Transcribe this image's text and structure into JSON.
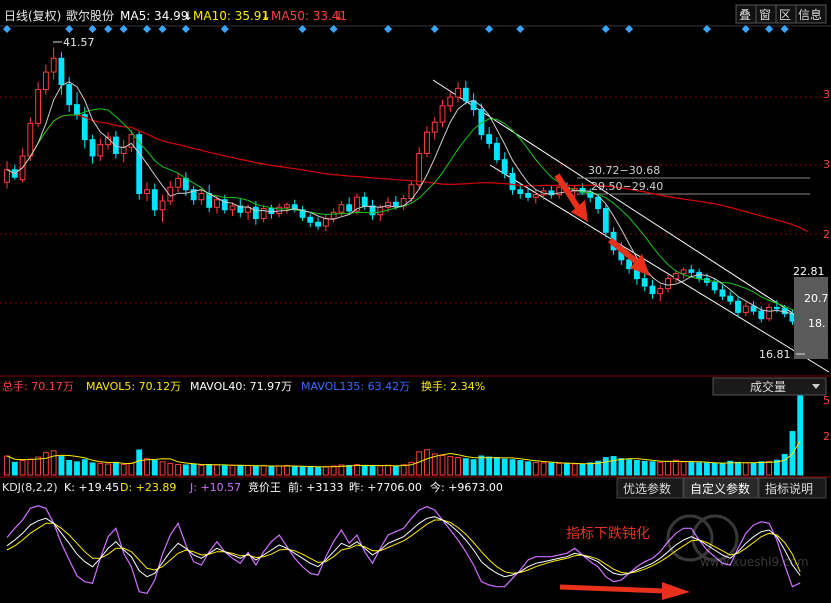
{
  "header": {
    "name_label": "日线(复权)",
    "stock_name": "歌尔股份",
    "ma5": "MA5: 34.99",
    "ma10": "MA10: 35.91",
    "ma50": "MA50: 33.41",
    "down_arrow": "↓",
    "up_arrow": "↑",
    "buttons": [
      "叠",
      "窗",
      "区",
      "信息"
    ]
  },
  "price_annotations": {
    "high": "41.57",
    "gap1": "30.72−30.68",
    "gap2": "29.50−29.40",
    "ma_val": "22.81",
    "mid_val": "20.7",
    "low_mid": "18.",
    "low": "16.81",
    "right_axis_digit": "3",
    "right_axis_digit2": "2"
  },
  "volume_panel": {
    "total": "总手: 70.17万",
    "mavol5": "MAVOL5: 70.12万",
    "mavol40": "MAVOL40: 71.97万",
    "mavol135": "MAVOL135: 63.42万",
    "turnover": "换手: 2.34%",
    "select_label": "成交量",
    "axis_digit": "5",
    "axis_digit2": "2"
  },
  "kdj_panel": {
    "label": "KDJ(8,2,2)",
    "k": "K: +19.45",
    "d": "D: +23.89",
    "j": "J: +10.57",
    "jingjia": "竞价王",
    "qian": "前: +3133",
    "zuo": "昨: +7706.00",
    "jin": "今: +9673.00",
    "tabs": [
      "优选参数",
      "自定义参数",
      "指标说明"
    ],
    "annotation": "指标下跌钝化",
    "watermark_url": "www.xueshl9.com"
  },
  "colors": {
    "background": "#000000",
    "up": "#ff3d3d",
    "down": "#00e5ff",
    "ma5": "#ffffff",
    "ma10": "#ffea00",
    "ma50": "#d80000",
    "channel": "#ffffff",
    "grid": "#8b0000",
    "arrow": "#e8301b",
    "diamond": "#3aa6ff"
  },
  "chart_data": {
    "type": "candlestick",
    "symbol": "歌尔股份",
    "timeframe": "daily (adjusted)",
    "price_range": [
      16.81,
      41.57
    ],
    "candles": [
      {
        "o": 30.8,
        "h": 32.5,
        "l": 30.3,
        "c": 31.8
      },
      {
        "o": 31.8,
        "h": 32.2,
        "l": 31.0,
        "c": 31.2
      },
      {
        "o": 31.0,
        "h": 33.5,
        "l": 30.8,
        "c": 32.9
      },
      {
        "o": 32.9,
        "h": 36.0,
        "l": 32.5,
        "c": 35.5
      },
      {
        "o": 35.5,
        "h": 38.8,
        "l": 35.2,
        "c": 38.2
      },
      {
        "o": 38.2,
        "h": 40.2,
        "l": 37.8,
        "c": 39.6
      },
      {
        "o": 39.6,
        "h": 41.57,
        "l": 39.0,
        "c": 40.7
      },
      {
        "o": 40.7,
        "h": 41.2,
        "l": 37.8,
        "c": 38.6
      },
      {
        "o": 38.6,
        "h": 39.2,
        "l": 36.4,
        "c": 37.0
      },
      {
        "o": 37.0,
        "h": 38.0,
        "l": 35.8,
        "c": 36.2
      },
      {
        "o": 36.2,
        "h": 36.8,
        "l": 33.5,
        "c": 34.2
      },
      {
        "o": 34.2,
        "h": 34.6,
        "l": 32.3,
        "c": 32.9
      },
      {
        "o": 32.9,
        "h": 34.3,
        "l": 32.5,
        "c": 33.8
      },
      {
        "o": 33.8,
        "h": 34.8,
        "l": 33.4,
        "c": 34.4
      },
      {
        "o": 34.4,
        "h": 34.9,
        "l": 32.7,
        "c": 33.1
      },
      {
        "o": 33.1,
        "h": 34.2,
        "l": 32.4,
        "c": 33.6
      },
      {
        "o": 33.6,
        "h": 35.0,
        "l": 33.2,
        "c": 34.6
      },
      {
        "o": 34.6,
        "h": 34.9,
        "l": 29.4,
        "c": 29.9
      },
      {
        "o": 29.9,
        "h": 30.8,
        "l": 29.3,
        "c": 30.2
      },
      {
        "o": 30.2,
        "h": 30.7,
        "l": 28.1,
        "c": 28.6
      },
      {
        "o": 28.6,
        "h": 29.8,
        "l": 27.6,
        "c": 29.3
      },
      {
        "o": 29.3,
        "h": 30.9,
        "l": 29.0,
        "c": 30.4
      },
      {
        "o": 30.4,
        "h": 31.5,
        "l": 30.0,
        "c": 31.1
      },
      {
        "o": 31.1,
        "h": 31.6,
        "l": 29.7,
        "c": 30.2
      },
      {
        "o": 30.2,
        "h": 30.5,
        "l": 29.0,
        "c": 29.4
      },
      {
        "o": 29.4,
        "h": 30.2,
        "l": 29.0,
        "c": 29.9
      },
      {
        "o": 29.9,
        "h": 30.6,
        "l": 28.4,
        "c": 28.8
      },
      {
        "o": 28.8,
        "h": 29.7,
        "l": 28.3,
        "c": 29.4
      },
      {
        "o": 29.4,
        "h": 29.8,
        "l": 28.3,
        "c": 28.6
      },
      {
        "o": 28.6,
        "h": 29.2,
        "l": 28.1,
        "c": 28.9
      },
      {
        "o": 28.9,
        "h": 29.5,
        "l": 28.0,
        "c": 28.4
      },
      {
        "o": 28.4,
        "h": 29.0,
        "l": 27.8,
        "c": 28.8
      },
      {
        "o": 28.8,
        "h": 29.3,
        "l": 27.4,
        "c": 27.9
      },
      {
        "o": 27.9,
        "h": 29.0,
        "l": 27.6,
        "c": 28.7
      },
      {
        "o": 28.7,
        "h": 29.0,
        "l": 27.9,
        "c": 28.3
      },
      {
        "o": 28.3,
        "h": 29.1,
        "l": 28.0,
        "c": 28.8
      },
      {
        "o": 28.8,
        "h": 29.2,
        "l": 28.3,
        "c": 29.0
      },
      {
        "o": 29.0,
        "h": 29.4,
        "l": 28.4,
        "c": 28.6
      },
      {
        "o": 28.6,
        "h": 28.9,
        "l": 27.7,
        "c": 28.0
      },
      {
        "o": 28.0,
        "h": 28.3,
        "l": 27.2,
        "c": 27.6
      },
      {
        "o": 27.6,
        "h": 28.0,
        "l": 27.0,
        "c": 27.3
      },
      {
        "o": 27.3,
        "h": 28.2,
        "l": 26.9,
        "c": 27.9
      },
      {
        "o": 27.9,
        "h": 28.7,
        "l": 27.6,
        "c": 28.4
      },
      {
        "o": 28.4,
        "h": 29.3,
        "l": 28.1,
        "c": 29.0
      },
      {
        "o": 29.0,
        "h": 29.6,
        "l": 28.2,
        "c": 28.5
      },
      {
        "o": 28.5,
        "h": 29.9,
        "l": 28.2,
        "c": 29.6
      },
      {
        "o": 29.6,
        "h": 30.0,
        "l": 28.6,
        "c": 28.9
      },
      {
        "o": 28.9,
        "h": 29.4,
        "l": 27.8,
        "c": 28.2
      },
      {
        "o": 28.2,
        "h": 29.0,
        "l": 27.7,
        "c": 28.8
      },
      {
        "o": 28.8,
        "h": 29.6,
        "l": 28.4,
        "c": 29.2
      },
      {
        "o": 29.2,
        "h": 29.7,
        "l": 28.6,
        "c": 28.9
      },
      {
        "o": 28.9,
        "h": 29.8,
        "l": 28.6,
        "c": 29.5
      },
      {
        "o": 29.5,
        "h": 30.9,
        "l": 29.2,
        "c": 30.6
      },
      {
        "o": 30.6,
        "h": 33.6,
        "l": 30.3,
        "c": 33.1
      },
      {
        "o": 33.1,
        "h": 35.3,
        "l": 32.8,
        "c": 34.8
      },
      {
        "o": 34.8,
        "h": 36.0,
        "l": 34.2,
        "c": 35.6
      },
      {
        "o": 35.6,
        "h": 37.4,
        "l": 35.2,
        "c": 36.9
      },
      {
        "o": 36.9,
        "h": 38.0,
        "l": 36.4,
        "c": 37.6
      },
      {
        "o": 37.6,
        "h": 38.8,
        "l": 37.2,
        "c": 38.3
      },
      {
        "o": 38.3,
        "h": 38.9,
        "l": 37.0,
        "c": 37.3
      },
      {
        "o": 37.3,
        "h": 37.9,
        "l": 36.1,
        "c": 36.6
      },
      {
        "o": 36.6,
        "h": 37.1,
        "l": 34.2,
        "c": 34.6
      },
      {
        "o": 34.6,
        "h": 35.2,
        "l": 33.5,
        "c": 33.9
      },
      {
        "o": 33.9,
        "h": 34.4,
        "l": 32.3,
        "c": 32.6
      },
      {
        "o": 32.6,
        "h": 33.2,
        "l": 31.1,
        "c": 31.5
      },
      {
        "o": 31.5,
        "h": 32.0,
        "l": 29.8,
        "c": 30.2
      },
      {
        "o": 30.2,
        "h": 30.7,
        "l": 29.5,
        "c": 29.9
      },
      {
        "o": 29.9,
        "h": 30.4,
        "l": 29.3,
        "c": 29.6
      },
      {
        "o": 29.6,
        "h": 30.2,
        "l": 29.1,
        "c": 29.8
      },
      {
        "o": 29.8,
        "h": 30.4,
        "l": 29.4,
        "c": 30.1
      },
      {
        "o": 30.1,
        "h": 30.5,
        "l": 29.5,
        "c": 29.8
      },
      {
        "o": 29.8,
        "h": 30.7,
        "l": 29.5,
        "c": 30.4
      },
      {
        "o": 30.4,
        "h": 30.8,
        "l": 29.9,
        "c": 30.1
      },
      {
        "o": 30.1,
        "h": 30.6,
        "l": 29.6,
        "c": 30.3
      },
      {
        "o": 30.3,
        "h": 30.72,
        "l": 29.8,
        "c": 30.0
      },
      {
        "o": 30.0,
        "h": 30.3,
        "l": 29.2,
        "c": 29.6
      },
      {
        "o": 29.6,
        "h": 29.9,
        "l": 28.3,
        "c": 28.7
      },
      {
        "o": 28.7,
        "h": 29.0,
        "l": 26.4,
        "c": 26.8
      },
      {
        "o": 26.8,
        "h": 27.2,
        "l": 25.0,
        "c": 25.4
      },
      {
        "o": 25.4,
        "h": 26.0,
        "l": 24.2,
        "c": 24.6
      },
      {
        "o": 24.6,
        "h": 25.0,
        "l": 23.5,
        "c": 23.9
      },
      {
        "o": 23.9,
        "h": 24.4,
        "l": 22.6,
        "c": 23.1
      },
      {
        "o": 23.1,
        "h": 23.6,
        "l": 22.1,
        "c": 22.5
      },
      {
        "o": 22.5,
        "h": 23.0,
        "l": 21.5,
        "c": 21.9
      },
      {
        "o": 21.9,
        "h": 22.6,
        "l": 21.3,
        "c": 22.3
      },
      {
        "o": 22.3,
        "h": 23.4,
        "l": 22.0,
        "c": 23.1
      },
      {
        "o": 23.1,
        "h": 23.8,
        "l": 22.8,
        "c": 23.5
      },
      {
        "o": 23.5,
        "h": 24.0,
        "l": 23.1,
        "c": 23.8
      },
      {
        "o": 23.8,
        "h": 24.2,
        "l": 23.3,
        "c": 23.6
      },
      {
        "o": 23.6,
        "h": 23.9,
        "l": 22.8,
        "c": 23.1
      },
      {
        "o": 23.1,
        "h": 23.5,
        "l": 22.5,
        "c": 22.8
      },
      {
        "o": 22.8,
        "h": 23.1,
        "l": 21.9,
        "c": 22.2
      },
      {
        "o": 22.2,
        "h": 22.6,
        "l": 21.4,
        "c": 21.7
      },
      {
        "o": 21.7,
        "h": 22.1,
        "l": 21.0,
        "c": 21.3
      },
      {
        "o": 21.3,
        "h": 21.6,
        "l": 20.0,
        "c": 20.4
      },
      {
        "o": 20.4,
        "h": 21.2,
        "l": 20.1,
        "c": 20.9
      },
      {
        "o": 20.9,
        "h": 21.3,
        "l": 20.2,
        "c": 20.5
      },
      {
        "o": 20.5,
        "h": 20.9,
        "l": 19.6,
        "c": 19.9
      },
      {
        "o": 19.9,
        "h": 21.1,
        "l": 19.7,
        "c": 20.8
      },
      {
        "o": 20.8,
        "h": 21.4,
        "l": 20.4,
        "c": 20.7
      },
      {
        "o": 20.7,
        "h": 21.0,
        "l": 20.0,
        "c": 20.3
      },
      {
        "o": 20.3,
        "h": 20.6,
        "l": 19.4,
        "c": 19.7
      },
      {
        "o": 19.7,
        "h": 20.1,
        "l": 18.2,
        "c": 18.6
      },
      {
        "o": 18.6,
        "h": 18.9,
        "l": 16.81,
        "c": 17.1
      }
    ],
    "volume": [
      72,
      48,
      55,
      60,
      68,
      85,
      92,
      70,
      55,
      50,
      58,
      46,
      44,
      42,
      48,
      40,
      45,
      95,
      62,
      55,
      50,
      44,
      40,
      38,
      42,
      36,
      40,
      38,
      35,
      37,
      34,
      36,
      33,
      35,
      32,
      34,
      36,
      33,
      30,
      29,
      30,
      32,
      34,
      38,
      36,
      40,
      34,
      33,
      35,
      37,
      34,
      39,
      48,
      88,
      96,
      80,
      74,
      70,
      66,
      62,
      58,
      72,
      68,
      66,
      60,
      58,
      55,
      50,
      48,
      46,
      45,
      44,
      43,
      42,
      41,
      46,
      52,
      66,
      70,
      62,
      58,
      55,
      52,
      50,
      48,
      52,
      56,
      50,
      48,
      46,
      45,
      44,
      42,
      52,
      48,
      46,
      44,
      50,
      52,
      56,
      78,
      165,
      300
    ],
    "kdj": {
      "k": [
        55,
        62,
        70,
        80,
        85,
        88,
        82,
        70,
        58,
        45,
        36,
        30,
        40,
        52,
        60,
        50,
        42,
        25,
        18,
        22,
        35,
        48,
        58,
        52,
        44,
        40,
        46,
        52,
        48,
        44,
        40,
        45,
        38,
        44,
        50,
        56,
        52,
        46,
        40,
        34,
        30,
        38,
        48,
        58,
        54,
        60,
        52,
        44,
        50,
        58,
        62,
        66,
        74,
        82,
        88,
        90,
        86,
        80,
        72,
        62,
        50,
        36,
        28,
        22,
        18,
        20,
        24,
        30,
        34,
        36,
        38,
        40,
        42,
        46,
        44,
        40,
        36,
        28,
        22,
        20,
        22,
        26,
        30,
        34,
        40,
        48,
        56,
        62,
        66,
        62,
        56,
        50,
        44,
        40,
        48,
        58,
        66,
        72,
        74,
        66,
        50,
        32,
        19.45
      ],
      "d": [
        50,
        55,
        62,
        70,
        76,
        82,
        82,
        76,
        68,
        58,
        48,
        40,
        40,
        45,
        52,
        52,
        48,
        38,
        28,
        26,
        30,
        38,
        46,
        50,
        48,
        44,
        45,
        48,
        48,
        46,
        43,
        44,
        41,
        42,
        45,
        50,
        51,
        49,
        45,
        40,
        35,
        36,
        42,
        50,
        52,
        56,
        54,
        49,
        49,
        53,
        57,
        61,
        67,
        74,
        81,
        86,
        86,
        83,
        77,
        69,
        59,
        48,
        38,
        30,
        24,
        22,
        23,
        26,
        30,
        33,
        36,
        38,
        40,
        43,
        44,
        42,
        39,
        33,
        27,
        23,
        22,
        24,
        27,
        31,
        36,
        42,
        49,
        55,
        61,
        62,
        59,
        54,
        49,
        44,
        46,
        52,
        59,
        66,
        70,
        68,
        59,
        45,
        23.89
      ],
      "j": [
        65,
        76,
        86,
        100,
        103,
        100,
        82,
        58,
        38,
        19,
        12,
        10,
        40,
        66,
        76,
        46,
        30,
        0,
        -2,
        14,
        45,
        68,
        82,
        56,
        36,
        32,
        48,
        60,
        48,
        40,
        34,
        47,
        32,
        48,
        60,
        68,
        54,
        40,
        30,
        22,
        20,
        42,
        60,
        74,
        58,
        68,
        48,
        34,
        52,
        68,
        72,
        76,
        88,
        98,
        102,
        98,
        86,
        74,
        62,
        48,
        32,
        12,
        8,
        6,
        6,
        16,
        26,
        38,
        42,
        42,
        42,
        44,
        46,
        52,
        44,
        36,
        30,
        18,
        12,
        14,
        22,
        30,
        36,
        40,
        48,
        60,
        70,
        76,
        76,
        62,
        50,
        42,
        34,
        32,
        52,
        70,
        80,
        84,
        82,
        62,
        32,
        6,
        10.57
      ]
    },
    "annotations": [
      "41.57",
      "30.72−30.68",
      "29.50−29.40",
      "22.81",
      "20.7",
      "18.",
      "16.81",
      "指标下跌钝化"
    ]
  }
}
